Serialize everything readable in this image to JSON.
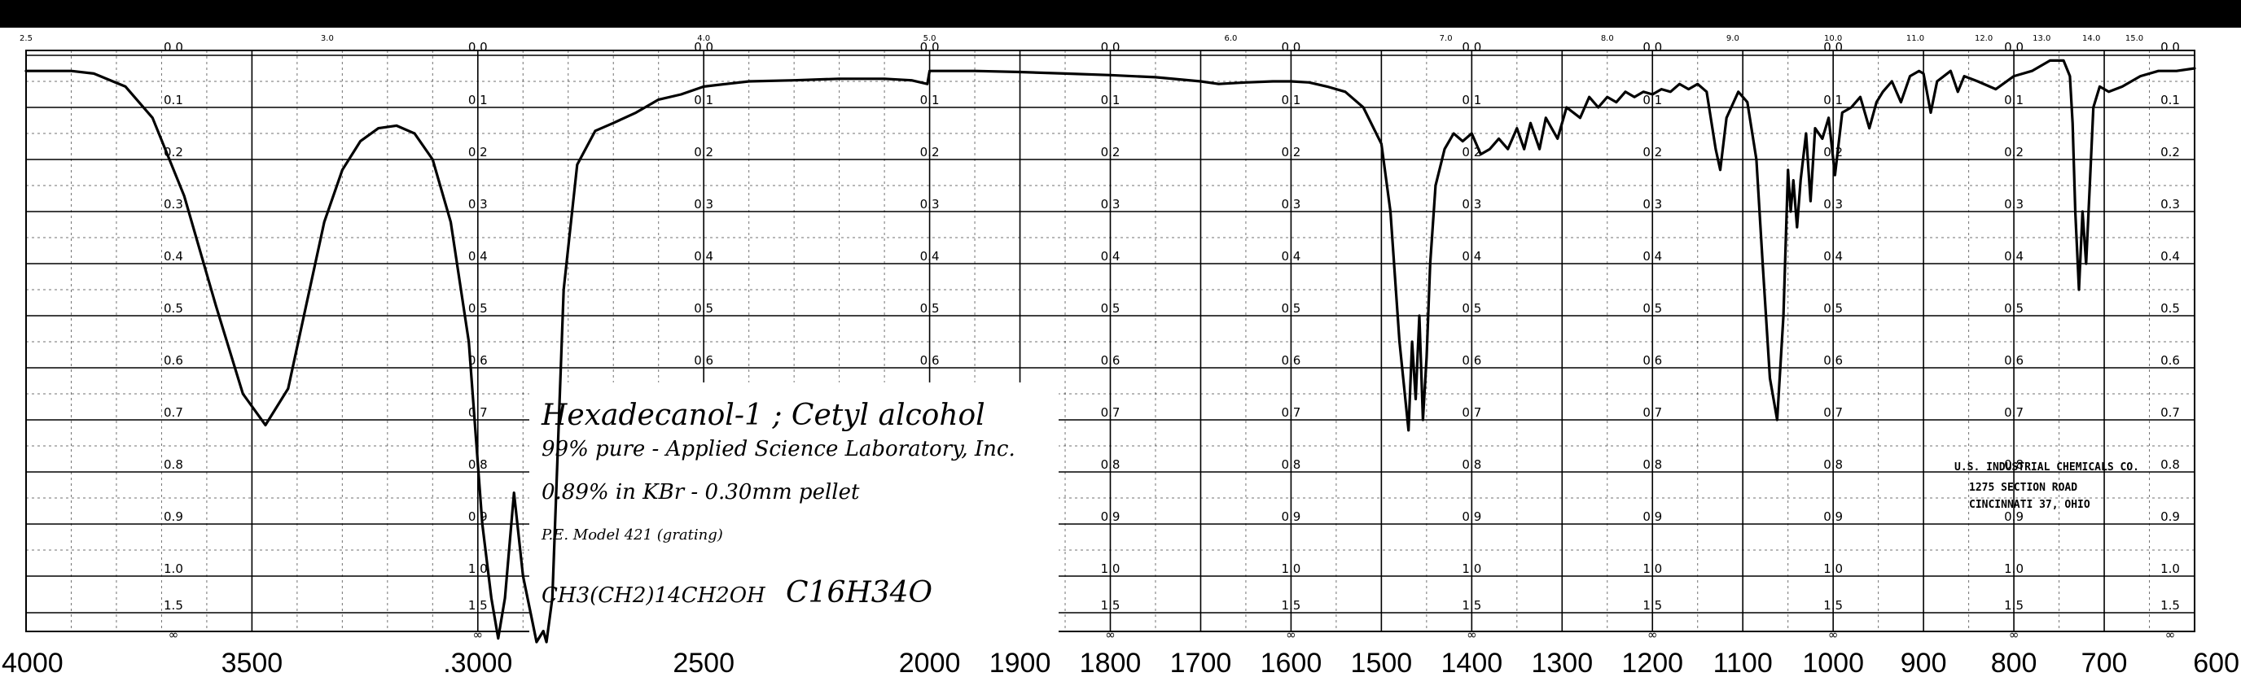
{
  "chart_data": {
    "type": "line",
    "title": "",
    "xlabel": "",
    "ylabel": "",
    "x_unit": "cm-1",
    "xlim": [
      4000,
      600
    ],
    "ylim": [
      0,
      2.0
    ],
    "y_axis_printed_values": [
      "0.0",
      "0.1",
      "0.2",
      "0.3",
      "0.4",
      "0.5",
      "0.6",
      "0.7",
      "0.8",
      "0.9",
      "1.0",
      "1.5",
      "∞"
    ],
    "x_tick_labels": [
      {
        "v": 4000,
        "t": "4000"
      },
      {
        "v": 3500,
        "t": "3500"
      },
      {
        "v": 3000,
        "t": ".3000"
      },
      {
        "v": 2500,
        "t": "2500"
      },
      {
        "v": 2000,
        "t": "2000"
      },
      {
        "v": 1900,
        "t": "1900"
      },
      {
        "v": 1800,
        "t": "1800"
      },
      {
        "v": 1700,
        "t": "1700"
      },
      {
        "v": 1600,
        "t": "1600"
      },
      {
        "v": 1500,
        "t": "1500"
      },
      {
        "v": 1400,
        "t": "1400"
      },
      {
        "v": 1300,
        "t": "1300"
      },
      {
        "v": 1200,
        "t": "1200"
      },
      {
        "v": 1100,
        "t": "1100"
      },
      {
        "v": 1000,
        "t": "1000"
      },
      {
        "v": 900,
        "t": "900"
      },
      {
        "v": 800,
        "t": "800"
      },
      {
        "v": 700,
        "t": "700"
      },
      {
        "v": 600,
        "t": "600"
      }
    ],
    "wavelength_tick_labels": [
      {
        "um": 2.5,
        "t": "2.5"
      },
      {
        "um": 3.0,
        "t": "3.0"
      },
      {
        "um": 4.0,
        "t": "4.0"
      },
      {
        "um": 5.0,
        "t": "5.0"
      },
      {
        "um": 6.0,
        "t": "6.0"
      },
      {
        "um": 7.0,
        "t": "7.0"
      },
      {
        "um": 8.0,
        "t": "8.0"
      },
      {
        "um": 9.0,
        "t": "9.0"
      },
      {
        "um": 10.0,
        "t": "10.0"
      },
      {
        "um": 11.0,
        "t": "11.0"
      },
      {
        "um": 12.0,
        "t": "12.0"
      },
      {
        "um": 13.0,
        "t": "13.0"
      },
      {
        "um": 14.0,
        "t": "14.0"
      },
      {
        "um": 15.0,
        "t": "15.0"
      }
    ],
    "absorbance_label_columns": [
      3800,
      3000,
      2500,
      2000,
      1800,
      1600,
      1400,
      1200,
      1000,
      800,
      600
    ],
    "series": [
      {
        "points": [
          [
            4000,
            0.03
          ],
          [
            3900,
            0.03
          ],
          [
            3850,
            0.035
          ],
          [
            3780,
            0.06
          ],
          [
            3720,
            0.12
          ],
          [
            3650,
            0.27
          ],
          [
            3580,
            0.48
          ],
          [
            3520,
            0.65
          ],
          [
            3470,
            0.71
          ],
          [
            3420,
            0.64
          ],
          [
            3380,
            0.48
          ],
          [
            3340,
            0.32
          ],
          [
            3300,
            0.22
          ],
          [
            3260,
            0.165
          ],
          [
            3220,
            0.14
          ],
          [
            3180,
            0.135
          ],
          [
            3140,
            0.15
          ],
          [
            3100,
            0.2
          ],
          [
            3060,
            0.32
          ],
          [
            3020,
            0.55
          ],
          [
            2990,
            0.9
          ],
          [
            2970,
            1.3
          ],
          [
            2955,
            1.85
          ],
          [
            2940,
            1.3
          ],
          [
            2920,
            0.84
          ],
          [
            2900,
            1.0
          ],
          [
            2880,
            1.6
          ],
          [
            2870,
            1.9
          ],
          [
            2855,
            1.75
          ],
          [
            2848,
            1.9
          ],
          [
            2835,
            1.3
          ],
          [
            2810,
            0.45
          ],
          [
            2780,
            0.21
          ],
          [
            2740,
            0.145
          ],
          [
            2700,
            0.13
          ],
          [
            2650,
            0.11
          ],
          [
            2600,
            0.085
          ],
          [
            2550,
            0.075
          ],
          [
            2500,
            0.06
          ],
          [
            2450,
            0.055
          ],
          [
            2400,
            0.05
          ],
          [
            2300,
            0.048
          ],
          [
            2200,
            0.045
          ],
          [
            2100,
            0.045
          ],
          [
            2040,
            0.048
          ],
          [
            2005,
            0.055
          ],
          [
            2000,
            0.03
          ],
          [
            1980,
            0.03
          ],
          [
            1950,
            0.03
          ],
          [
            1900,
            0.032
          ],
          [
            1850,
            0.035
          ],
          [
            1800,
            0.038
          ],
          [
            1750,
            0.042
          ],
          [
            1700,
            0.05
          ],
          [
            1680,
            0.055
          ],
          [
            1650,
            0.052
          ],
          [
            1620,
            0.05
          ],
          [
            1600,
            0.05
          ],
          [
            1580,
            0.052
          ],
          [
            1560,
            0.06
          ],
          [
            1540,
            0.07
          ],
          [
            1520,
            0.1
          ],
          [
            1500,
            0.17
          ],
          [
            1490,
            0.3
          ],
          [
            1480,
            0.55
          ],
          [
            1470,
            0.72
          ],
          [
            1466,
            0.55
          ],
          [
            1462,
            0.66
          ],
          [
            1458,
            0.5
          ],
          [
            1454,
            0.7
          ],
          [
            1450,
            0.58
          ],
          [
            1446,
            0.4
          ],
          [
            1440,
            0.25
          ],
          [
            1430,
            0.18
          ],
          [
            1420,
            0.15
          ],
          [
            1410,
            0.165
          ],
          [
            1400,
            0.15
          ],
          [
            1390,
            0.19
          ],
          [
            1380,
            0.18
          ],
          [
            1370,
            0.16
          ],
          [
            1360,
            0.18
          ],
          [
            1350,
            0.14
          ],
          [
            1342,
            0.18
          ],
          [
            1335,
            0.13
          ],
          [
            1325,
            0.18
          ],
          [
            1318,
            0.12
          ],
          [
            1305,
            0.16
          ],
          [
            1295,
            0.1
          ],
          [
            1280,
            0.12
          ],
          [
            1270,
            0.08
          ],
          [
            1260,
            0.1
          ],
          [
            1250,
            0.08
          ],
          [
            1240,
            0.09
          ],
          [
            1230,
            0.07
          ],
          [
            1220,
            0.08
          ],
          [
            1210,
            0.07
          ],
          [
            1200,
            0.075
          ],
          [
            1190,
            0.065
          ],
          [
            1180,
            0.07
          ],
          [
            1170,
            0.055
          ],
          [
            1160,
            0.065
          ],
          [
            1150,
            0.055
          ],
          [
            1140,
            0.07
          ],
          [
            1130,
            0.18
          ],
          [
            1125,
            0.22
          ],
          [
            1118,
            0.12
          ],
          [
            1105,
            0.07
          ],
          [
            1095,
            0.09
          ],
          [
            1085,
            0.2
          ],
          [
            1078,
            0.4
          ],
          [
            1070,
            0.62
          ],
          [
            1062,
            0.7
          ],
          [
            1055,
            0.5
          ],
          [
            1050,
            0.22
          ],
          [
            1047,
            0.3
          ],
          [
            1044,
            0.24
          ],
          [
            1040,
            0.33
          ],
          [
            1036,
            0.24
          ],
          [
            1030,
            0.15
          ],
          [
            1025,
            0.28
          ],
          [
            1020,
            0.14
          ],
          [
            1012,
            0.16
          ],
          [
            1005,
            0.12
          ],
          [
            998,
            0.23
          ],
          [
            990,
            0.11
          ],
          [
            980,
            0.1
          ],
          [
            970,
            0.08
          ],
          [
            960,
            0.14
          ],
          [
            952,
            0.09
          ],
          [
            945,
            0.07
          ],
          [
            935,
            0.05
          ],
          [
            925,
            0.09
          ],
          [
            915,
            0.04
          ],
          [
            905,
            0.03
          ],
          [
            900,
            0.035
          ],
          [
            892,
            0.11
          ],
          [
            885,
            0.05
          ],
          [
            870,
            0.03
          ],
          [
            862,
            0.07
          ],
          [
            855,
            0.04
          ],
          [
            840,
            0.05
          ],
          [
            820,
            0.065
          ],
          [
            800,
            0.04
          ],
          [
            780,
            0.03
          ],
          [
            760,
            0.01
          ],
          [
            745,
            0.01
          ],
          [
            738,
            0.04
          ],
          [
            735,
            0.13
          ],
          [
            732,
            0.3
          ],
          [
            728,
            0.45
          ],
          [
            724,
            0.3
          ],
          [
            720,
            0.4
          ],
          [
            716,
            0.25
          ],
          [
            712,
            0.1
          ],
          [
            705,
            0.06
          ],
          [
            695,
            0.07
          ],
          [
            680,
            0.06
          ],
          [
            660,
            0.04
          ],
          [
            640,
            0.03
          ],
          [
            620,
            0.03
          ],
          [
            600,
            0.025
          ]
        ]
      }
    ],
    "annotations": {
      "compound": "Hexadecanol-1 ; Cetyl alcohol",
      "purity": "99% pure - Applied Science Laboratory, Inc.",
      "sample": "0.89% in KBr - 0.30mm pellet",
      "instrument": "P.E. Model 421 (grating)",
      "formula_condensed": "CH3(CH2)14CH2OH",
      "formula": "C16H34O",
      "stamp_line1": "U.S. INDUSTRIAL CHEMICALS CO.",
      "stamp_line2": "1275 SECTION ROAD",
      "stamp_line3": "CINCINNATI 37, OHIO"
    }
  }
}
